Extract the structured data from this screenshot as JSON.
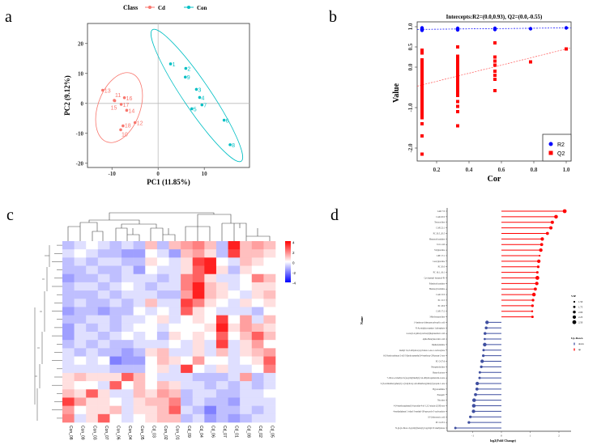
{
  "panels": {
    "a": "a",
    "b": "b",
    "c": "c",
    "d": "d"
  },
  "chart_data": [
    {
      "type": "scatter",
      "id": "a",
      "title": "",
      "xlabel": "PC1 (11.85%)",
      "ylabel": "PC2 (9.12%)",
      "xlim": [
        -15.3,
        19.8
      ],
      "ylim": [
        -21.4,
        26.7
      ],
      "xticks": [
        -10,
        0,
        10
      ],
      "yticks": [
        -20,
        -10,
        0,
        10,
        20
      ],
      "legend": {
        "title": "Class",
        "position": "top",
        "entries": [
          "Cd",
          "Con"
        ]
      },
      "colors": {
        "Cd": "#f8766d",
        "Con": "#00bfc4"
      },
      "series": [
        {
          "name": "Cd",
          "points": [
            {
              "label": "13",
              "x": -12,
              "y": 4.4
            },
            {
              "label": "11",
              "x": -9.5,
              "y": 1.0
            },
            {
              "label": "15",
              "x": -9.4,
              "y": 0.9
            },
            {
              "label": "16",
              "x": -7.3,
              "y": 1.9
            },
            {
              "label": "17",
              "x": -8.0,
              "y": -0.3
            },
            {
              "label": "14",
              "x": -6.8,
              "y": -2.3
            },
            {
              "label": "12",
              "x": -5.0,
              "y": -6.4
            },
            {
              "label": "18",
              "x": -7.6,
              "y": -7.5
            },
            {
              "label": "10",
              "x": -8.1,
              "y": -8.8
            }
          ]
        },
        {
          "name": "Con",
          "points": [
            {
              "label": "1",
              "x": 2.7,
              "y": 13.2
            },
            {
              "label": "2",
              "x": 6.0,
              "y": 11.7
            },
            {
              "label": "9",
              "x": 5.9,
              "y": 8.8
            },
            {
              "label": "3",
              "x": 8.3,
              "y": 4.7
            },
            {
              "label": "4",
              "x": 9.0,
              "y": 2.0
            },
            {
              "label": "7",
              "x": 9.5,
              "y": -0.5
            },
            {
              "label": "5",
              "x": 7.3,
              "y": -1.8
            },
            {
              "label": "6",
              "x": 14.3,
              "y": -5.6
            },
            {
              "label": "8",
              "x": 15.6,
              "y": -13.8
            }
          ]
        }
      ]
    },
    {
      "type": "scatter",
      "id": "b",
      "title": "Intercepts:R2=(0.0,0.93), Q2=(0.0,-0.55)",
      "xlabel": "Cor",
      "ylabel": "Value",
      "xlim": [
        0.08,
        1.03
      ],
      "ylim": [
        -2.32,
        1.12
      ],
      "xticks": [
        "0.2",
        "0.4",
        "0.6",
        "0.8",
        "1.0"
      ],
      "yticks": [
        "1.0",
        "0.5",
        "0.0",
        "-1.0",
        "-2.0"
      ],
      "legend": {
        "position": "bottom-right",
        "entries": [
          "R2",
          "Q2"
        ]
      },
      "colors": {
        "R2": "#0000ff",
        "Q2": "#ff0000"
      },
      "intercepts": {
        "R2": [
          0.93,
          0.97
        ],
        "Q2": [
          -0.55,
          0.45
        ]
      },
      "series": [
        {
          "name": "R2",
          "x": [
            0.11,
            0.11,
            0.11,
            0.11,
            0.33,
            0.33,
            0.33,
            0.56,
            0.56,
            0.78,
            1.0
          ],
          "y": [
            0.97,
            0.95,
            0.93,
            0.91,
            0.96,
            0.94,
            0.92,
            0.96,
            0.93,
            0.95,
            0.97
          ]
        },
        {
          "name": "Q2",
          "x": [
            0.11,
            0.11,
            0.11,
            0.11,
            0.11,
            0.11,
            0.11,
            0.11,
            0.11,
            0.11,
            0.11,
            0.11,
            0.11,
            0.11,
            0.11,
            0.11,
            0.11,
            0.11,
            0.11,
            0.11,
            0.11,
            0.11,
            0.11,
            0.11,
            0.11,
            0.11,
            0.11,
            0.11,
            0.11,
            0.33,
            0.33,
            0.33,
            0.33,
            0.33,
            0.33,
            0.33,
            0.33,
            0.33,
            0.33,
            0.33,
            0.33,
            0.33,
            0.33,
            0.33,
            0.33,
            0.33,
            0.33,
            0.33,
            0.56,
            0.56,
            0.56,
            0.56,
            0.56,
            0.56,
            0.56,
            0.56,
            0.78,
            1.0
          ],
          "y": [
            0.42,
            0.35,
            0.18,
            0.12,
            0.05,
            -0.02,
            -0.1,
            -0.18,
            -0.25,
            -0.32,
            -0.4,
            -0.47,
            -0.55,
            -0.62,
            -0.7,
            -0.77,
            -0.85,
            -0.92,
            -1.0,
            -1.07,
            -1.15,
            -1.22,
            -1.25,
            0.08,
            -0.6,
            -0.95,
            -1.4,
            -1.7,
            -2.15,
            0.5,
            0.27,
            0.2,
            0.12,
            0.05,
            -0.03,
            -0.1,
            -0.18,
            -0.25,
            -0.32,
            -0.4,
            -0.48,
            -0.55,
            -0.62,
            -0.7,
            -0.85,
            -0.97,
            -1.1,
            -1.45,
            0.6,
            0.25,
            0.15,
            0.05,
            -0.1,
            -0.2,
            -0.3,
            -0.58,
            0.13,
            0.45
          ]
        }
      ]
    },
    {
      "type": "heatmap",
      "id": "c",
      "columns": [
        "Con_08",
        "Con_09",
        "Con_03",
        "Con_07",
        "Con_06",
        "Con_04",
        "Con_05",
        "Cd_03",
        "Con_02",
        "Con_01",
        "Cd_09",
        "Cd_04",
        "Cd_06",
        "Cd_07",
        "Cd_01",
        "Cd_08",
        "Cd_02",
        "Cd_05"
      ],
      "colorbar": {
        "ticks": [
          "4",
          "2",
          "0",
          "-2",
          "-4"
        ],
        "low": "#0000ff",
        "mid": "#ffffff",
        "high": "#ff0000",
        "range": [
          -4,
          4
        ]
      },
      "values": [
        [
          -1,
          -0.5,
          0,
          -0.5,
          -1,
          -0.5,
          -1,
          1,
          -1,
          1,
          1.5,
          2,
          1,
          -1,
          3.5,
          1,
          1.5,
          1
        ],
        [
          -0.5,
          0,
          -0.5,
          -1,
          -1,
          -1.5,
          -1.5,
          0,
          -0.5,
          -1.5,
          1,
          1.5,
          0.5,
          -1,
          3,
          1,
          1,
          0.5
        ],
        [
          -1,
          -0.5,
          -1,
          -0.5,
          -0.5,
          -1,
          -1,
          0.5,
          0,
          -0.5,
          0.5,
          3,
          3.5,
          0,
          -0.5,
          1,
          0.5,
          0
        ],
        [
          -1,
          -1,
          -0.5,
          -1,
          -1,
          -0.5,
          -1.5,
          0,
          -0.5,
          -0.5,
          0.5,
          2.5,
          3.5,
          0.5,
          -1,
          0.5,
          0,
          0
        ],
        [
          -1.5,
          -1,
          -1,
          -0.5,
          -1,
          -0.5,
          -0.5,
          -0.5,
          -1,
          -0.5,
          2,
          2.5,
          0.5,
          -0.5,
          -0.5,
          0,
          2,
          1
        ],
        [
          -1,
          -0.5,
          -0.5,
          -1,
          -0.5,
          0,
          -0.5,
          -1,
          -0.5,
          -0.5,
          2,
          3.5,
          1,
          0.5,
          -0.5,
          0,
          0.5,
          0.5
        ],
        [
          -1,
          -1,
          -1,
          -0.5,
          -1,
          -0.5,
          -0.5,
          -0.5,
          -1,
          -1,
          1.5,
          3.5,
          1,
          0.5,
          0,
          -0.5,
          0.5,
          1
        ],
        [
          -1,
          -0.5,
          -1,
          -1,
          -0.5,
          -1,
          -0.5,
          1,
          -0.5,
          -0.5,
          3,
          2,
          0.5,
          0,
          -0.5,
          0.5,
          0,
          0.5
        ],
        [
          -1.5,
          -1,
          -1,
          -1.5,
          -1,
          -1,
          0,
          -0.5,
          0,
          -0.5,
          2.5,
          0.5,
          0,
          -0.5,
          -0.5,
          -0.5,
          -1,
          0
        ],
        [
          -1,
          -1,
          -0.5,
          -0.5,
          -1,
          -0.5,
          -0.5,
          0,
          0.5,
          -0.5,
          0,
          0.5,
          0,
          3,
          0,
          1.5,
          -0.5,
          1
        ],
        [
          -1.5,
          -0.5,
          -1,
          -0.5,
          -1,
          -0.5,
          0,
          0,
          -0.5,
          0,
          0,
          0,
          0.5,
          3.5,
          0.5,
          1.5,
          1,
          0.5
        ],
        [
          -1.5,
          -0.5,
          -0.5,
          -1,
          -0.5,
          0,
          -0.5,
          0,
          -1,
          0.5,
          0,
          0.5,
          0,
          2.5,
          0,
          1,
          2.5,
          1
        ],
        [
          -1,
          -0.5,
          -1,
          -0.5,
          -1,
          -1,
          -0.5,
          -0.5,
          -0.5,
          0,
          -0.5,
          0.5,
          -0.5,
          3,
          -0.5,
          0.5,
          1.5,
          0
        ],
        [
          -0.5,
          -1,
          -0.5,
          -1,
          -1,
          -1.5,
          -1,
          0.5,
          1,
          -0.5,
          -0.5,
          0.5,
          -0.5,
          1,
          -0.5,
          0.5,
          1,
          1.5
        ],
        [
          -0.5,
          0,
          -0.5,
          0,
          -2,
          -1.5,
          -1.5,
          0,
          1,
          0.5,
          0,
          1.5,
          0,
          0,
          -0.5,
          0,
          0.5,
          2.5
        ],
        [
          -0.5,
          -0.5,
          -0.5,
          -0.5,
          -1,
          -1,
          -1,
          0,
          0.5,
          -0.5,
          3,
          0,
          -0.5,
          0.5,
          -0.5,
          -0.5,
          0,
          2
        ],
        [
          0.5,
          1,
          0.5,
          0.5,
          0.5,
          2.5,
          1,
          0,
          -0.5,
          -0.5,
          -0.5,
          -1,
          -1,
          -1,
          -0.5,
          1.5,
          -1,
          -0.5
        ],
        [
          0.5,
          0,
          0,
          -0.5,
          2.5,
          0,
          1,
          0,
          1,
          0.5,
          -0.5,
          -0.5,
          -1,
          -0.5,
          -1,
          -0.5,
          -1,
          -0.5
        ],
        [
          1,
          0.5,
          2.5,
          0.5,
          -0.5,
          -0.5,
          1,
          0.5,
          1.5,
          1,
          -1,
          -0.5,
          -0.5,
          -1,
          -1,
          -0.5,
          -0.5,
          0
        ],
        [
          3,
          1.5,
          0.5,
          0.5,
          0,
          -0.5,
          0.5,
          1,
          1,
          2,
          -1,
          -0.5,
          -1,
          -1,
          -1.5,
          -0.5,
          -0.5,
          -0.5
        ],
        [
          1.5,
          0,
          0.5,
          0.5,
          1,
          -0.5,
          0.5,
          0.5,
          1,
          2.5,
          -0.5,
          -1,
          -2,
          -1,
          -1,
          -0.5,
          -1,
          -0.5
        ],
        [
          2,
          -0.5,
          0.5,
          2.5,
          0,
          -0.5,
          0,
          0.5,
          1,
          1,
          -1,
          -0.5,
          -1.5,
          -1,
          -1.5,
          -1,
          -0.5,
          -0.5
        ]
      ]
    },
    {
      "type": "bar",
      "subtype": "lollipop",
      "id": "d",
      "xlabel": "log2(Fold Change)",
      "ylabel": "Name",
      "xlim": [
        -1.9,
        2.4
      ],
      "xticks": [
        "-1",
        "0",
        "1",
        "2"
      ],
      "colors": {
        "up": "#ff0000",
        "down": "#3f4fa0"
      },
      "legend": {
        "vip_title": "VIP",
        "vip_entries": [
          "1.50",
          "1.75",
          "2.00",
          "2.25",
          "2.50"
        ],
        "updown_title": "Up-Down",
        "updown_entries": [
          "down",
          "up"
        ]
      },
      "categories": [
        "CAR 7:0",
        "CAR 20:0",
        "Tetracycline",
        "CAR 22:1",
        "PC 20:5_20:5",
        "Hexanoylcarnitine",
        "Uric acid",
        "Valylproline",
        "LPE 17:1",
        "Leucylproline",
        "PC 20:0",
        "PC 16:1_16:1",
        "Cyclopentyl butanoyl-Pi",
        "Palmitoylcarnitine",
        "Hexanoylcarnitine",
        "CAR 15:0",
        "PC 15:5",
        "PC 18:6",
        "CAR 17:2",
        "3-Hydroxyproline",
        "1-Aminocyclohexanecarboxylic acid",
        "N-Acetylglucosamine 1-phosphate",
        "4-acetyl-4-(ethoxycarbonyl)heptanedioic acid",
        "alpha-Benzylsuccinic acid",
        "Diphenylamine",
        "methyl 3,4,5-trihydroxycyclohex-1-ene-1-carboxylate",
        "6-(3-hydroxybutan-2-yl)-5-(hydroxymethyl)-4-methoxy-2H-pyran-2-one",
        "PC O-27:6",
        "Phosphocholine",
        "Butyrolactone",
        "7-chloro-2-methyl-3-(4-pyridylmethyl)-3,4-dihydroquinazolin-4-one",
        "3-(3,4-dimethoxyphenyl)-1-(2-hydroxy-4,6-dimethoxyphenyl) propan-1-one",
        "Hypoxanthine",
        "Etazepril",
        "Nicotine",
        "4-(4-methoxyphenyl)-6-pyridin-4-yl-1,3,5-triazin-2(1H)-one",
        "4-methylphenyl 1-ethyl-3-methyl-1H-pyrazole-5-carboxylate",
        "10-Undecenoic acid",
        "PC O-23:2",
        "N-[4-(2-chloro-3-pyridyl)benzyl]-3-pyridyl-N'-methylurea"
      ],
      "values": [
        2.2,
        1.9,
        1.77,
        1.72,
        1.6,
        1.42,
        1.4,
        1.37,
        1.33,
        1.3,
        1.28,
        1.25,
        1.25,
        1.23,
        1.18,
        1.13,
        1.1,
        1.08,
        1.07,
        1.08,
        -0.5,
        -0.53,
        -0.57,
        -0.58,
        -0.58,
        -0.62,
        -0.63,
        -0.67,
        -0.7,
        -0.75,
        -0.76,
        -0.84,
        -0.85,
        -0.9,
        -0.95,
        -0.96,
        -0.97,
        -1.08,
        -1.13,
        -1.6
      ],
      "vip": [
        2.5,
        2.4,
        2.2,
        2.2,
        2.1,
        2.3,
        2.1,
        2.3,
        1.5,
        2.3,
        1.9,
        1.8,
        2.5,
        2.3,
        2.1,
        2.4,
        1.9,
        1.9,
        1.6,
        1.8,
        2.3,
        2.0,
        2.0,
        1.7,
        2.4,
        1.8,
        1.9,
        2.3,
        1.9,
        1.8,
        1.8,
        2.3,
        2.1,
        2.1,
        2.4,
        2.4,
        2.3,
        1.9,
        1.9,
        1.8
      ]
    }
  ]
}
